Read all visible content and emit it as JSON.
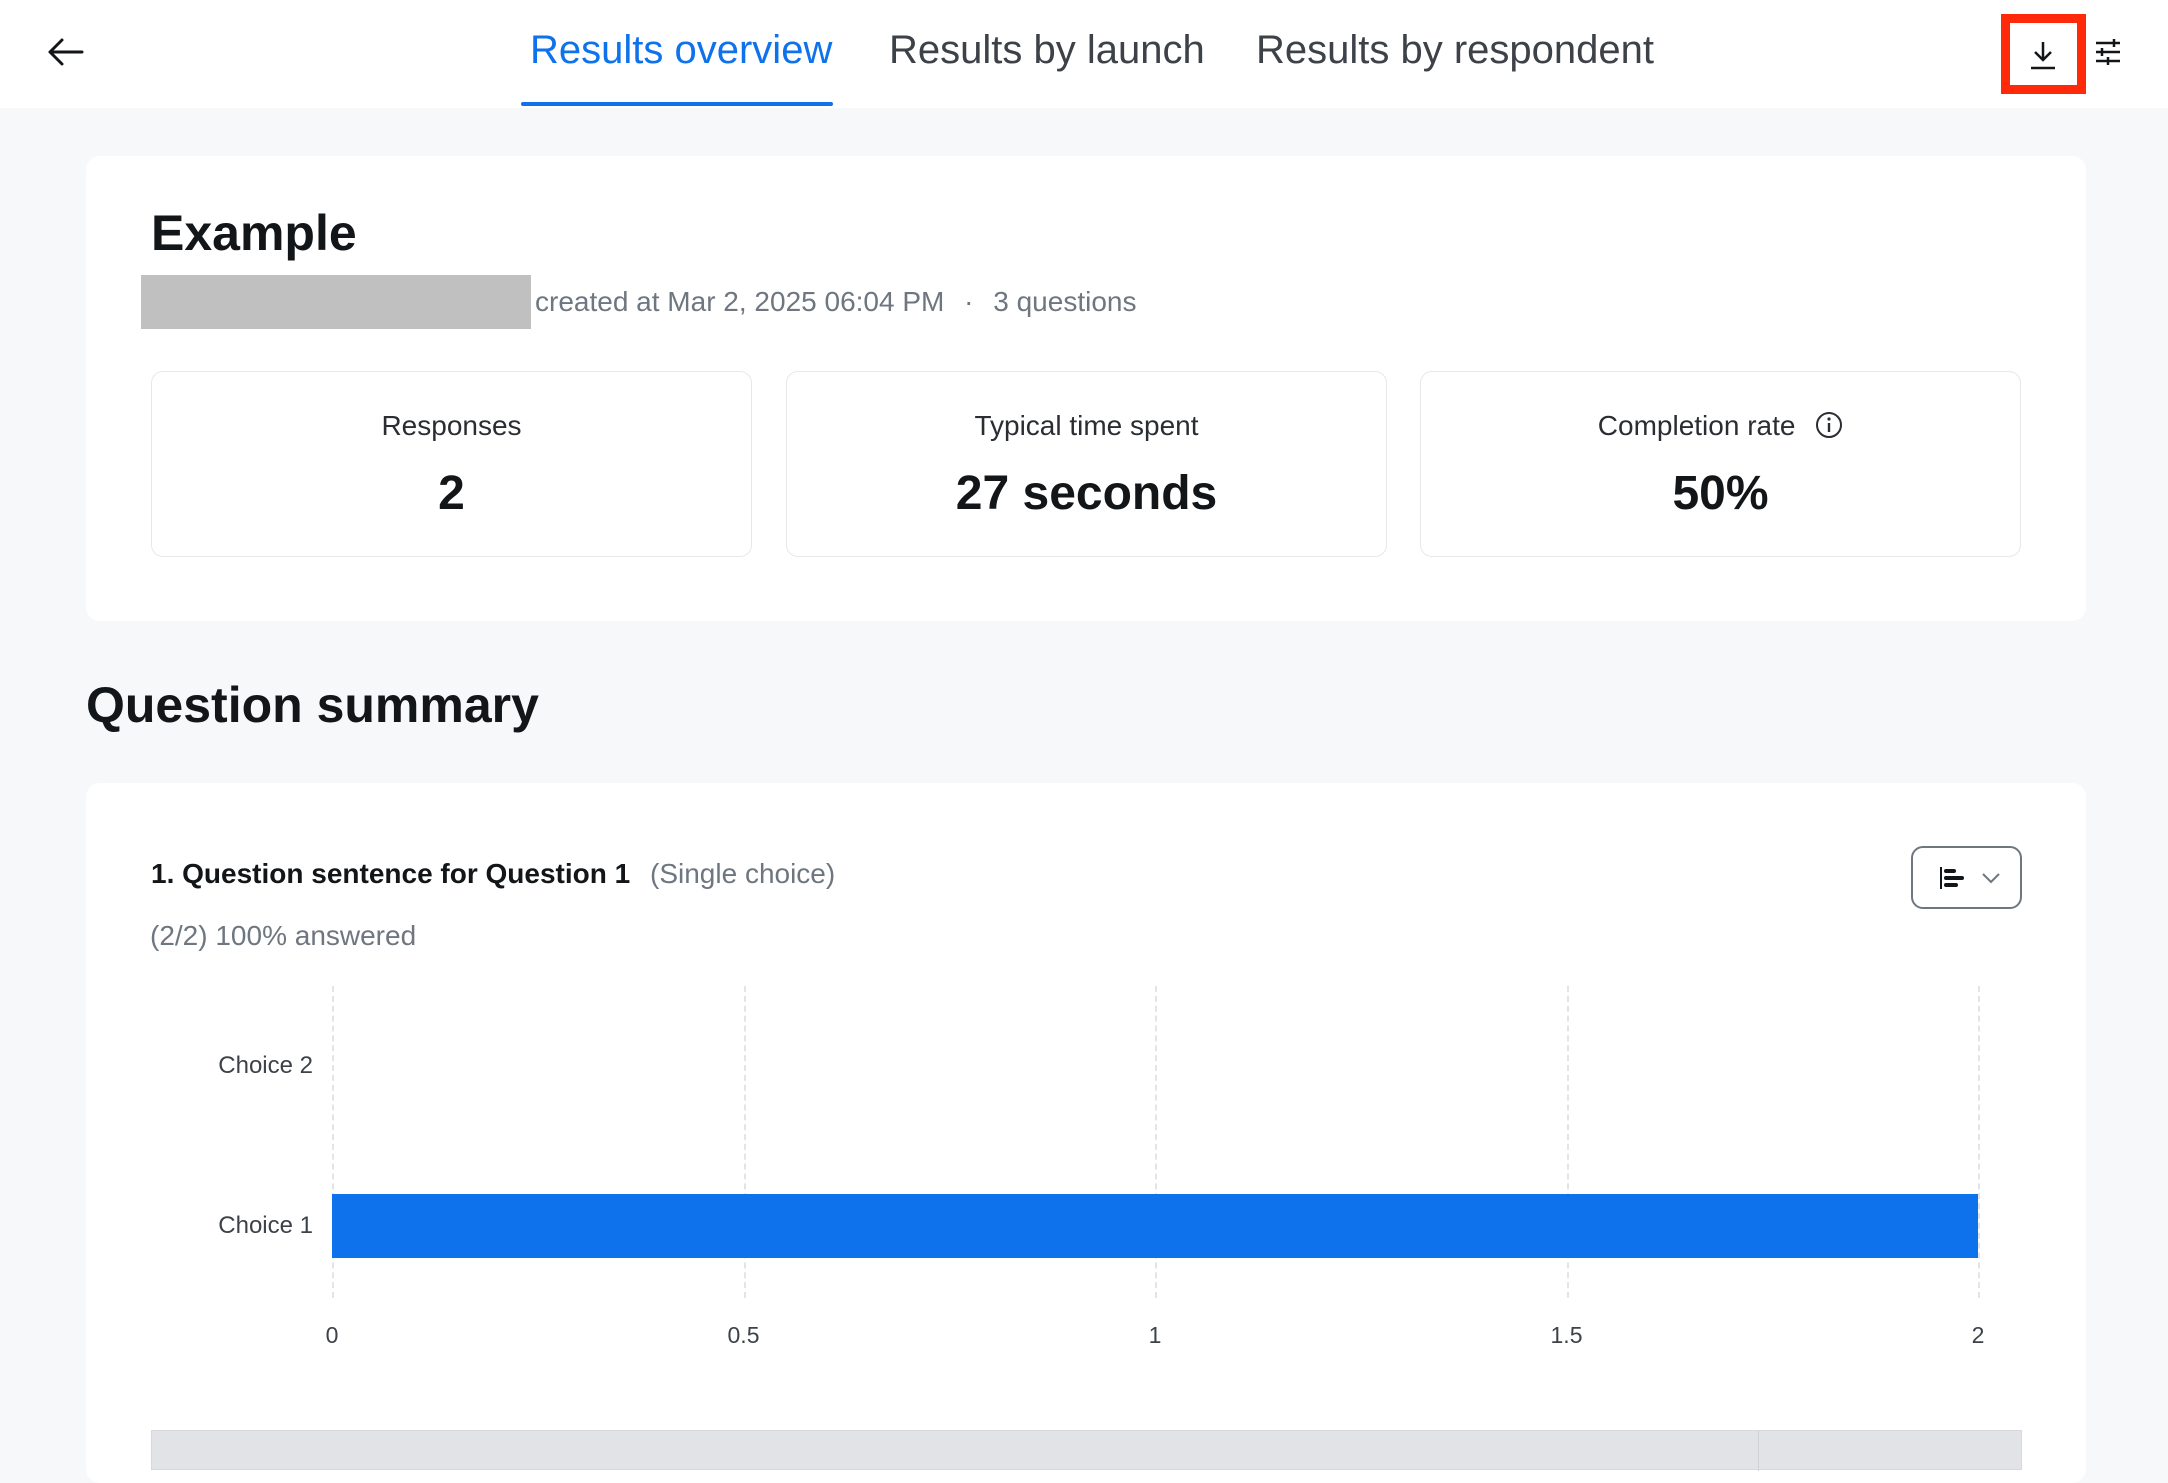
{
  "header": {
    "back_icon": "arrow-left-icon",
    "tabs": [
      {
        "label": "Results overview",
        "active": true
      },
      {
        "label": "Results by launch",
        "active": false
      },
      {
        "label": "Results by respondent",
        "active": false
      }
    ],
    "download_icon": "download-icon",
    "settings_icon": "sliders-icon",
    "accent": "#0e72ed",
    "highlight_color": "#ff2a0a"
  },
  "overview": {
    "title": "Example",
    "meta_created": "created at Mar 2, 2025 06:04 PM",
    "meta_sep": "·",
    "meta_questions": "3 questions",
    "stats": [
      {
        "label": "Responses",
        "value": "2"
      },
      {
        "label": "Typical time spent",
        "value": "27 seconds"
      },
      {
        "label": "Completion rate",
        "value": "50%",
        "info_icon": "info-icon"
      }
    ]
  },
  "summary": {
    "heading": "Question summary",
    "question": {
      "title": "1. Question sentence for Question 1",
      "type": "(Single choice)",
      "answered": "(2/2) 100% answered",
      "chart_type_icon": "bar-chart-horizontal-icon"
    }
  },
  "chart_data": {
    "type": "bar",
    "orientation": "horizontal",
    "categories": [
      "Choice 2",
      "Choice 1"
    ],
    "values": [
      0,
      2
    ],
    "xlim": [
      0,
      2
    ],
    "xticks": [
      "0",
      "0.5",
      "1",
      "1.5",
      "2"
    ],
    "grid": true,
    "color": "#0e72ed"
  }
}
